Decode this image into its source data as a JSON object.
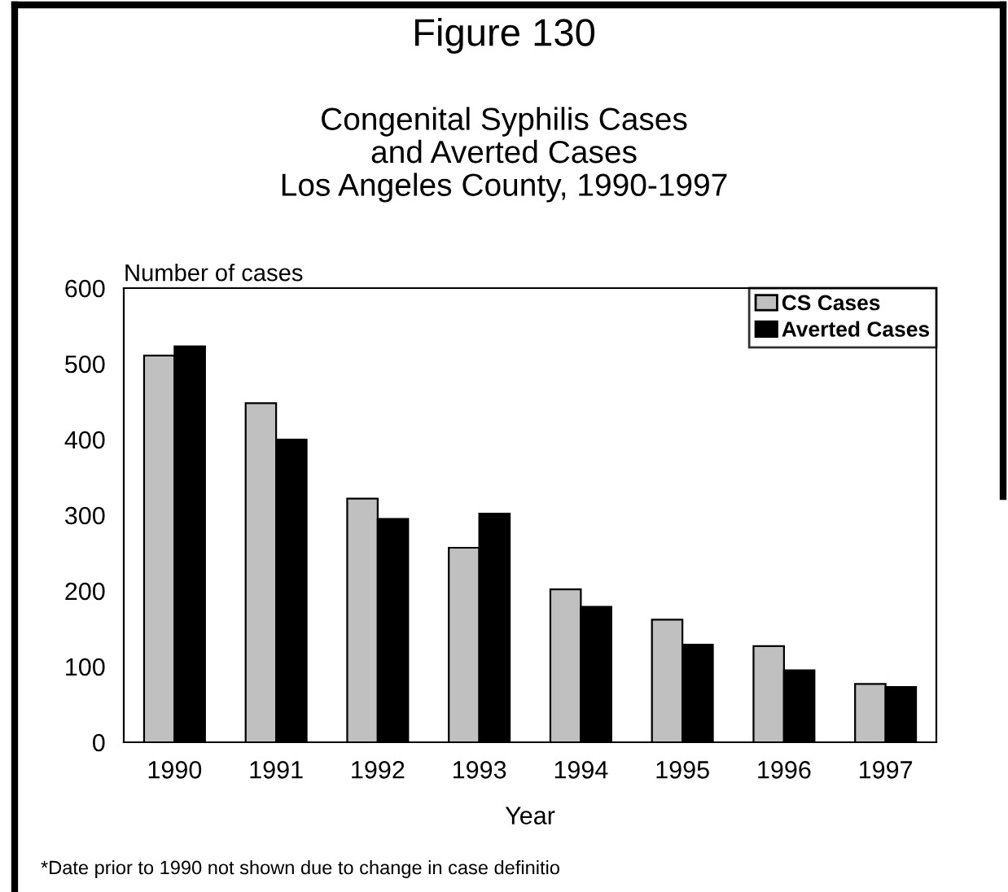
{
  "chart_data": {
    "type": "bar",
    "title": "Figure 130",
    "subtitle": "Congenital Syphilis Cases\nand Averted Cases\nLos Angeles County, 1990-1997",
    "xlabel": "Year",
    "ylabel": "Number of cases",
    "annotations": [
      "*Date prior to 1990 not shown due to change in case definitio"
    ],
    "categories": [
      "1990",
      "1991",
      "1992",
      "1993",
      "1994",
      "1995",
      "1996",
      "1997"
    ],
    "series": [
      {
        "name": "CS Cases",
        "color": "#c0c0c0",
        "values": [
          511,
          448,
          322,
          257,
          202,
          162,
          127,
          77
        ]
      },
      {
        "name": "Averted Cases",
        "color": "#000000",
        "values": [
          523,
          400,
          295,
          302,
          179,
          129,
          95,
          73
        ]
      }
    ],
    "ylim": [
      0,
      600
    ],
    "yticks": [
      0,
      100,
      200,
      300,
      400,
      500,
      600
    ],
    "grid": false,
    "legend": "top right"
  }
}
